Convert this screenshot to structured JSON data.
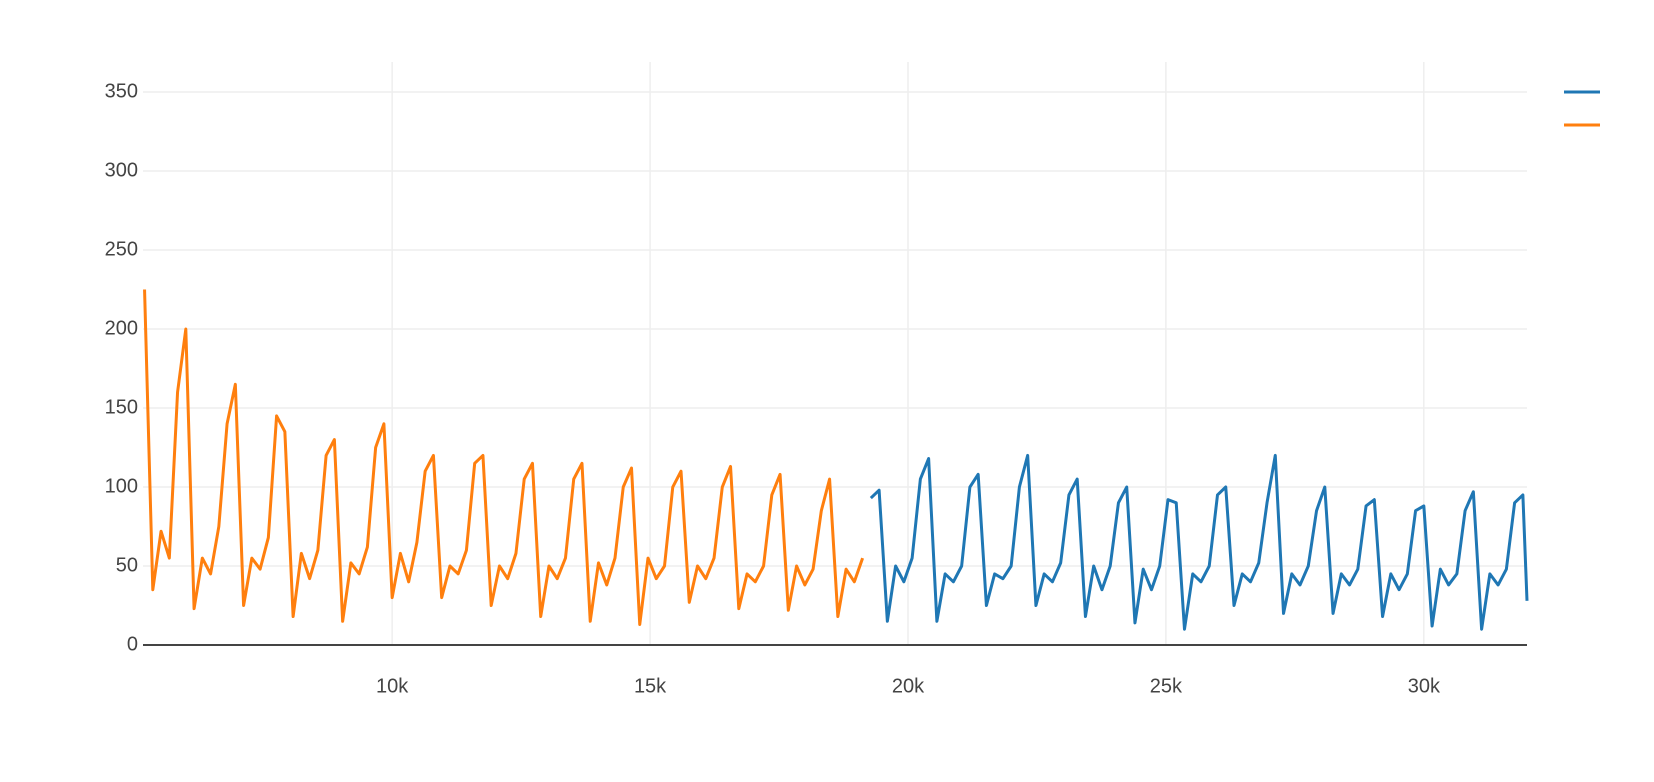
{
  "chart_data": {
    "type": "line",
    "xlim": [
      5170,
      32000
    ],
    "ylim": [
      0,
      369
    ],
    "xticks": [
      {
        "value": 10000,
        "label": "10k"
      },
      {
        "value": 15000,
        "label": "15k"
      },
      {
        "value": 20000,
        "label": "20k"
      },
      {
        "value": 25000,
        "label": "25k"
      },
      {
        "value": 30000,
        "label": "30k"
      }
    ],
    "yticks": [
      0,
      50,
      100,
      150,
      200,
      250,
      300,
      350
    ],
    "grid": true,
    "legend": "top-right",
    "series": [
      {
        "color": "#1f77b4",
        "x": [
          19280,
          19440,
          19600,
          19760,
          19920,
          20080,
          20240,
          20400,
          20560,
          20720,
          20880,
          21040,
          21200,
          21360,
          21520,
          21680,
          21840,
          22000,
          22160,
          22320,
          22480,
          22640,
          22800,
          22960,
          23120,
          23280,
          23440,
          23600,
          23760,
          23920,
          24080,
          24240,
          24400,
          24560,
          24720,
          24880,
          25040,
          25200,
          25360,
          25520,
          25680,
          25840,
          26000,
          26160,
          26320,
          26480,
          26640,
          26800,
          26960,
          27120,
          27280,
          27440,
          27600,
          27760,
          27920,
          28080,
          28240,
          28400,
          28560,
          28720,
          28880,
          29040,
          29200,
          29360,
          29520,
          29680,
          29840,
          30000,
          30160,
          30320,
          30480,
          30640,
          30800,
          30960,
          31120,
          31280,
          31440,
          31600,
          31760,
          31920,
          32000
        ],
        "values": [
          93,
          98,
          15,
          50,
          40,
          55,
          105,
          118,
          15,
          45,
          40,
          50,
          100,
          108,
          25,
          45,
          42,
          50,
          100,
          120,
          25,
          45,
          40,
          52,
          95,
          105,
          18,
          50,
          35,
          50,
          90,
          100,
          14,
          48,
          35,
          50,
          92,
          90,
          10,
          45,
          40,
          50,
          95,
          100,
          25,
          45,
          40,
          52,
          90,
          120,
          20,
          45,
          38,
          50,
          85,
          100,
          20,
          45,
          38,
          48,
          88,
          92,
          18,
          45,
          35,
          45,
          85,
          88,
          12,
          48,
          38,
          45,
          85,
          97,
          10,
          45,
          38,
          48,
          90,
          95,
          28
        ]
      },
      {
        "color": "#ff7f0e",
        "x": [
          5200,
          5360,
          5520,
          5680,
          5840,
          6000,
          6160,
          6320,
          6480,
          6640,
          6800,
          6960,
          7120,
          7280,
          7440,
          7600,
          7760,
          7920,
          8080,
          8240,
          8400,
          8560,
          8720,
          8880,
          9040,
          9200,
          9360,
          9520,
          9680,
          9840,
          10000,
          10160,
          10320,
          10480,
          10640,
          10800,
          10960,
          11120,
          11280,
          11440,
          11600,
          11760,
          11920,
          12080,
          12240,
          12400,
          12560,
          12720,
          12880,
          13040,
          13200,
          13360,
          13520,
          13680,
          13840,
          14000,
          14160,
          14320,
          14480,
          14640,
          14800,
          14960,
          15120,
          15280,
          15440,
          15600,
          15760,
          15920,
          16080,
          16240,
          16400,
          16560,
          16720,
          16880,
          17040,
          17200,
          17360,
          17520,
          17680,
          17840,
          18000,
          18160,
          18320,
          18480,
          18640,
          18800,
          18960,
          19120
        ],
        "values": [
          225,
          35,
          72,
          55,
          160,
          200,
          23,
          55,
          45,
          75,
          140,
          165,
          25,
          55,
          48,
          68,
          145,
          135,
          18,
          58,
          42,
          60,
          120,
          130,
          15,
          52,
          45,
          62,
          125,
          140,
          30,
          58,
          40,
          65,
          110,
          120,
          30,
          50,
          45,
          60,
          115,
          120,
          25,
          50,
          42,
          58,
          105,
          115,
          18,
          50,
          42,
          55,
          105,
          115,
          15,
          52,
          38,
          55,
          100,
          112,
          13,
          55,
          42,
          50,
          100,
          110,
          27,
          50,
          42,
          55,
          100,
          113,
          23,
          45,
          40,
          50,
          95,
          108,
          22,
          50,
          38,
          48,
          85,
          105,
          18,
          48,
          40,
          55
        ]
      }
    ]
  }
}
